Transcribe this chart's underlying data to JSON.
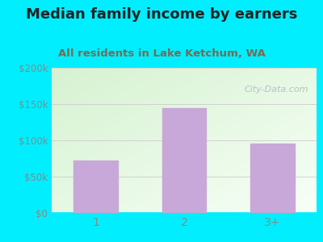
{
  "title": "Median family income by earners",
  "subtitle": "All residents in Lake Ketchum, WA",
  "categories": [
    "1",
    "2",
    "3+"
  ],
  "values": [
    72000,
    145000,
    96000
  ],
  "bar_color": "#c8a8d8",
  "ylim": [
    0,
    200000
  ],
  "yticks": [
    0,
    50000,
    100000,
    150000,
    200000
  ],
  "ytick_labels": [
    "$0",
    "$50k",
    "$100k",
    "$150k",
    "$200k"
  ],
  "background_outer": "#00eeff",
  "title_color": "#222222",
  "subtitle_color": "#7a6a50",
  "tick_color": "#888888",
  "grid_color": "#cccccc",
  "watermark": "City-Data.com",
  "title_fontsize": 13,
  "subtitle_fontsize": 9.5,
  "bg_gradient_colors": [
    "#d4edcc",
    "#edf7e8",
    "#f5faf2",
    "#ffffff"
  ],
  "bg_top_color": "#f0faf8"
}
